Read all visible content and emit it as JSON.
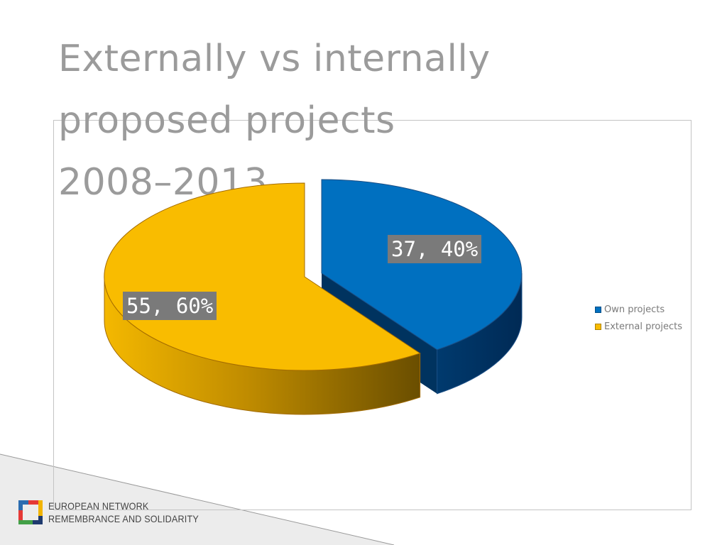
{
  "slide": {
    "title_lines": [
      "Externally vs internally",
      "proposed projects",
      "2008–2013"
    ]
  },
  "chart_data": {
    "type": "pie",
    "title": "",
    "categories": [
      "Own projects",
      "External projects"
    ],
    "values": [
      37,
      55
    ],
    "percentages": [
      40,
      60
    ],
    "data_labels": [
      "37, 40%",
      "55, 60%"
    ],
    "colors": [
      "#0070c0",
      "#f9bc00"
    ],
    "exploded": true,
    "three_d": true,
    "legend_position": "right"
  },
  "legend": {
    "items": [
      {
        "label": "Own projects",
        "color": "#0070c0"
      },
      {
        "label": "External projects",
        "color": "#f9bc00"
      }
    ]
  },
  "logo": {
    "line1": "EUROPEAN NETWORK",
    "line2": "REMEMBRANCE AND SOLIDARITY"
  }
}
